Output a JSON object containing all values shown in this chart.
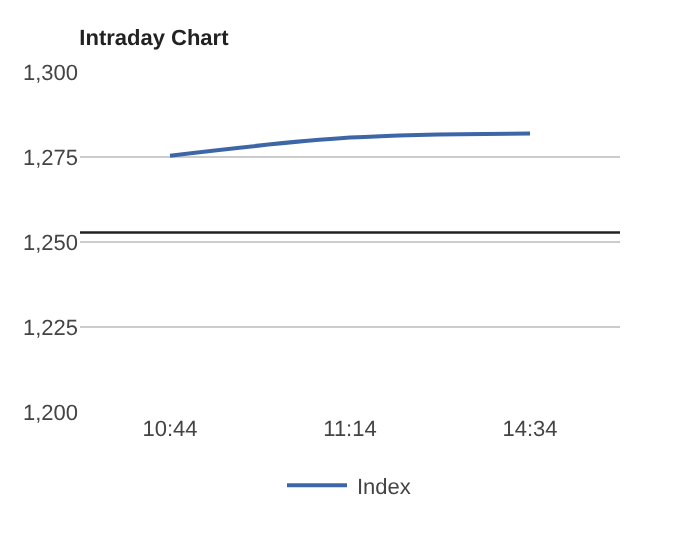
{
  "chart_data": {
    "type": "line",
    "title": "Intraday Chart",
    "categories": [
      "10:44",
      "11:14",
      "14:34"
    ],
    "series": [
      {
        "name": "Index",
        "color": "#3d66a6",
        "values": [
          1275.4,
          1280.7,
          1281.9
        ]
      }
    ],
    "ylim": [
      1200,
      1300
    ],
    "yticks": [
      {
        "value": 1200,
        "label": "1,200"
      },
      {
        "value": 1225,
        "label": "1,225"
      },
      {
        "value": 1250,
        "label": "1,250"
      },
      {
        "value": 1275,
        "label": "1,275"
      },
      {
        "value": 1300,
        "label": "1,300"
      }
    ],
    "ref_lines": [
      {
        "axis": "y",
        "value": 1252.8,
        "color": "#222222"
      }
    ],
    "grid": "y",
    "legend": "bottom",
    "marker": "none",
    "line_style": "solid"
  }
}
